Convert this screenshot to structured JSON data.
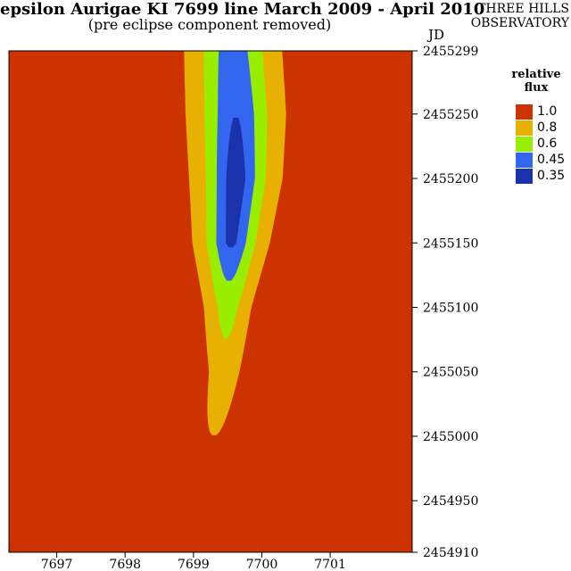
{
  "chart_data": {
    "type": "heatmap",
    "title": "epsilon Aurigae KI 7699 line March 2009 - April 2010",
    "subtitle": "(pre eclipse component removed)",
    "observatory": [
      "THREE HILLS",
      "OBSERVATORY"
    ],
    "ylabel": "JD",
    "x_ticks": [
      "7697",
      "7698",
      "7699",
      "7700",
      "7701"
    ],
    "x_tick_values": [
      7697,
      7698,
      7699,
      7700,
      7701
    ],
    "xlim": [
      7696.3,
      7702.2
    ],
    "y_ticks": [
      "2455299",
      "2455250",
      "2455200",
      "2455150",
      "2455100",
      "2455050",
      "2455000",
      "2454950",
      "2454910"
    ],
    "y_tick_values": [
      2455299,
      2455250,
      2455200,
      2455150,
      2455100,
      2455050,
      2455000,
      2454950,
      2454910
    ],
    "ylim": [
      2454910,
      2455299
    ],
    "colorbar_title": [
      "relative",
      "flux"
    ],
    "levels": [
      {
        "label": "1.0",
        "color": "#cc3300"
      },
      {
        "label": "0.8",
        "color": "#e8b000"
      },
      {
        "label": "0.6",
        "color": "#99ee00"
      },
      {
        "label": "0.45",
        "color": "#3366ee"
      },
      {
        "label": "0.35",
        "color": "#1a33aa"
      }
    ],
    "absorption_profile": [
      {
        "jd": 2455299,
        "center": 7699.58,
        "halfwidth": 0.55,
        "min_flux": 0.45
      },
      {
        "jd": 2455250,
        "center": 7699.62,
        "halfwidth": 0.55,
        "min_flux": 0.4
      },
      {
        "jd": 2455200,
        "center": 7699.62,
        "halfwidth": 0.5,
        "min_flux": 0.35
      },
      {
        "jd": 2455150,
        "center": 7699.55,
        "halfwidth": 0.42,
        "min_flux": 0.38
      },
      {
        "jd": 2455100,
        "center": 7699.5,
        "halfwidth": 0.3,
        "min_flux": 0.62
      },
      {
        "jd": 2455050,
        "center": 7699.45,
        "halfwidth": 0.25,
        "min_flux": 0.78
      },
      {
        "jd": 2455000,
        "center": 7699.3,
        "halfwidth": 0.25,
        "min_flux": 0.9
      },
      {
        "jd": 2454950,
        "center": 7699.2,
        "halfwidth": 0.15,
        "min_flux": 0.98
      },
      {
        "jd": 2454910,
        "center": 7699.2,
        "halfwidth": 0.1,
        "min_flux": 1.0
      }
    ]
  }
}
